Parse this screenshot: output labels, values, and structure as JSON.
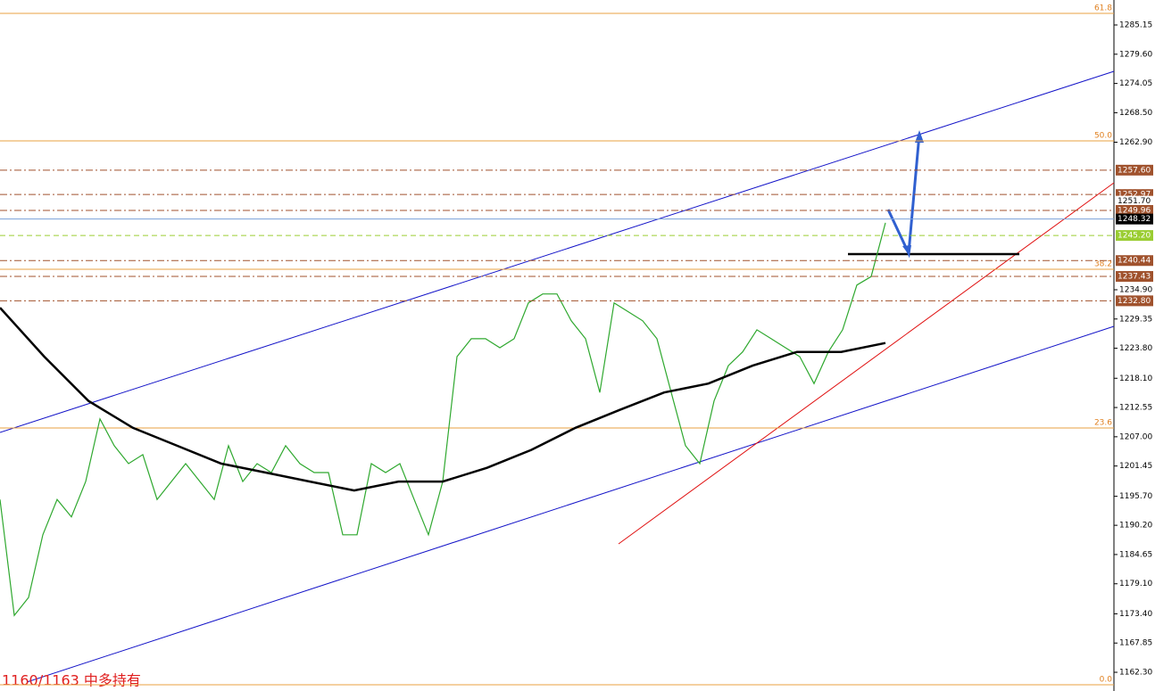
{
  "chart_data": {
    "type": "line",
    "annotation": "1160/1163    中多持有",
    "ylim": [
      1158.75,
      1289.89
    ],
    "yticks": [
      1285.15,
      {
        "value": 1279.6,
        "label": "1279.60"
      },
      1274.05,
      {
        "value": 1268.5,
        "label": "1268.50"
      },
      {
        "value": 1262.9,
        "label": "1262.90"
      },
      {
        "value": 1234.9,
        "label": "1234.90"
      },
      1229.35,
      {
        "value": 1223.8,
        "label": "1223.80"
      },
      {
        "value": 1218.1,
        "label": "1218.10"
      },
      1212.55,
      {
        "value": 1207,
        "label": "1207.00"
      },
      1201.45,
      {
        "value": 1195.7,
        "label": "1195.70"
      },
      {
        "value": 1190.2,
        "label": "1190.20"
      },
      1184.65,
      {
        "value": 1179.1,
        "label": "1179.10"
      },
      {
        "value": 1173.4,
        "label": "1173.40"
      },
      1167.85,
      {
        "value": 1162.3,
        "label": "1162.30"
      }
    ],
    "series": [
      {
        "color": "#2fa82f",
        "values": [
          1195.1,
          1173.1,
          1176.5,
          1188.4,
          1195.1,
          1191.8,
          1198.5,
          1210.4,
          1205.3,
          1201.9,
          1203.6,
          1195.1,
          1198.5,
          1201.9,
          1198.5,
          1195.1,
          1205.3,
          1198.5,
          1201.9,
          1200.2,
          1205.3,
          1201.9,
          1200.2,
          1200.2,
          1188.4,
          1188.4,
          1201.9,
          1200.2,
          1201.9,
          1195.1,
          1188.4,
          1198.5,
          1222.2,
          1225.6,
          1225.6,
          1223.9,
          1225.6,
          1232.4,
          1234.1,
          1234.1,
          1229.0,
          1225.6,
          1215.4,
          1232.4,
          1230.7,
          1229.0,
          1225.6,
          1215.4,
          1205.3,
          1201.9,
          1213.8,
          1220.5,
          1223.1,
          1227.3,
          1225.6,
          1223.9,
          1222.2,
          1217.1,
          1223.1,
          1227.3,
          1235.8,
          1237.4,
          1247.6
        ]
      },
      {
        "color": "#000000",
        "values": [
          1231.5,
          1222.2,
          1213.8,
          1208.7,
          1205.3,
          1201.9,
          1200.2,
          1198.5,
          1196.8,
          1198.5,
          1198.5,
          1201.1,
          1204.5,
          1208.7,
          1212.1,
          1215.4,
          1217.1,
          1220.5,
          1223.1,
          1223.1,
          1224.8
        ]
      }
    ],
    "levels": [
      {
        "value": 1257.6,
        "label": "1257.60",
        "color": "#a0522d",
        "line": "dashdot"
      },
      {
        "value": 1252.97,
        "label": "1252.97",
        "color": "#a0522d",
        "line": "dashdot"
      },
      {
        "value": 1251.7,
        "label": "1251.70",
        "color": "#ffffff",
        "line": "none"
      },
      {
        "value": 1249.96,
        "label": "1249.96",
        "color": "#a0522d",
        "line": "dashdot"
      },
      {
        "value": 1248.32,
        "label": "1248.32",
        "color": "#000000",
        "line": "solid"
      },
      {
        "value": 1245.2,
        "label": "1245.20",
        "color": "#9acd32",
        "line": "dashed"
      },
      {
        "value": 1240.44,
        "label": "1240.44",
        "color": "#a0522d",
        "line": "dashdot"
      },
      {
        "value": 1237.43,
        "label": "1237.43",
        "color": "#a0522d",
        "line": "dashdot"
      },
      {
        "value": 1232.8,
        "label": "1232.80",
        "color": "#a0522d",
        "line": "dashdot"
      }
    ],
    "fib_levels": [
      {
        "label": "61.8",
        "value": 1287.35
      },
      {
        "label": "50.0",
        "value": 1263.16
      },
      {
        "label": "38.2",
        "value": 1238.79
      },
      {
        "label": "23.6",
        "value": 1208.67
      },
      {
        "label": "0.0",
        "value": 1159.94
      }
    ]
  }
}
